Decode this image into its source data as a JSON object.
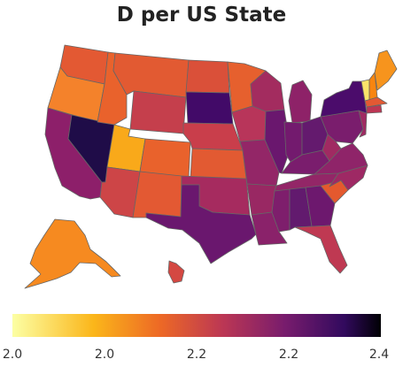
{
  "title": "D per US State",
  "legend": {
    "ticks": [
      "2.0",
      "2.0",
      "2.2",
      "2.2",
      "2.4"
    ],
    "colors": [
      "#fcffa4",
      "#fbb61a",
      "#ed6925",
      "#bc3754",
      "#781c6d",
      "#320a5e",
      "#000004"
    ]
  },
  "regions": [
    {
      "name": "washington",
      "color": "#e35933"
    },
    {
      "name": "oregon",
      "color": "#f4822b"
    },
    {
      "name": "california",
      "color": "#8d1f6a"
    },
    {
      "name": "nevada",
      "color": "#1f0c48"
    },
    {
      "name": "idaho",
      "color": "#e9622c"
    },
    {
      "name": "montana",
      "color": "#e25a32"
    },
    {
      "name": "wyoming",
      "color": "#c53f4c"
    },
    {
      "name": "utah",
      "color": "#f9a91a"
    },
    {
      "name": "arizona",
      "color": "#cd4547"
    },
    {
      "name": "colorado",
      "color": "#e9622c"
    },
    {
      "name": "new-mexico",
      "color": "#e35933"
    },
    {
      "name": "north-dakota",
      "color": "#da5039"
    },
    {
      "name": "south-dakota",
      "color": "#420a68"
    },
    {
      "name": "nebraska",
      "color": "#c93e4b"
    },
    {
      "name": "kansas",
      "color": "#e25a32"
    },
    {
      "name": "oklahoma",
      "color": "#a62b5f"
    },
    {
      "name": "texas",
      "color": "#6a176e"
    },
    {
      "name": "minnesota",
      "color": "#e6602e"
    },
    {
      "name": "iowa",
      "color": "#b8355a"
    },
    {
      "name": "missouri",
      "color": "#932667"
    },
    {
      "name": "arkansas",
      "color": "#992863"
    },
    {
      "name": "louisiana",
      "color": "#8a226a"
    },
    {
      "name": "wisconsin",
      "color": "#a32c5f"
    },
    {
      "name": "illinois",
      "color": "#6a176e"
    },
    {
      "name": "michigan",
      "color": "#8e2268"
    },
    {
      "name": "indiana",
      "color": "#731a6e"
    },
    {
      "name": "ohio",
      "color": "#641a6e"
    },
    {
      "name": "kentucky",
      "color": "#7a1d6d"
    },
    {
      "name": "tennessee",
      "color": "#932667"
    },
    {
      "name": "mississippi",
      "color": "#7e1e6c"
    },
    {
      "name": "alabama",
      "color": "#621a6e"
    },
    {
      "name": "georgia",
      "color": "#6d186e"
    },
    {
      "name": "florida",
      "color": "#bf3952"
    },
    {
      "name": "south-carolina",
      "color": "#e4592e"
    },
    {
      "name": "north-carolina",
      "color": "#9e2964"
    },
    {
      "name": "virginia",
      "color": "#8f2469"
    },
    {
      "name": "west-virginia",
      "color": "#a02a62"
    },
    {
      "name": "pennsylvania",
      "color": "#7a1d6d"
    },
    {
      "name": "new-york",
      "color": "#4b0c6b"
    },
    {
      "name": "new-jersey",
      "color": "#a02a62"
    },
    {
      "name": "vermont",
      "color": "#fbe46a"
    },
    {
      "name": "new-hampshire",
      "color": "#f8850f"
    },
    {
      "name": "maine",
      "color": "#f7941d"
    },
    {
      "name": "massachusetts",
      "color": "#e35933"
    },
    {
      "name": "connecticut",
      "color": "#bc3754"
    },
    {
      "name": "alaska",
      "color": "#f68a20"
    },
    {
      "name": "hawaii",
      "color": "#d44842"
    }
  ]
}
